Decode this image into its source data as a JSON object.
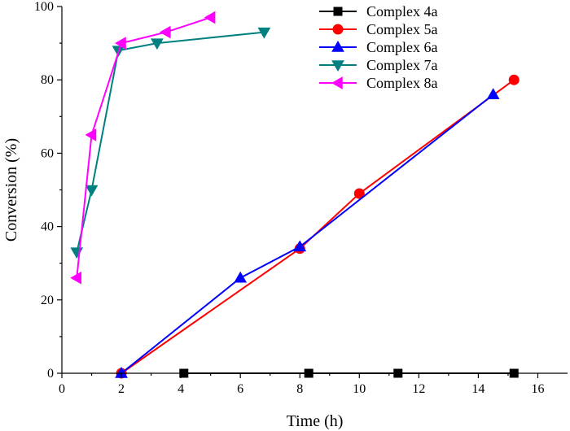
{
  "chart_data": {
    "type": "line",
    "title": "",
    "xlabel": "Time (h)",
    "ylabel": "Conversion (%)",
    "xlim": [
      0,
      17
    ],
    "ylim": [
      0,
      100
    ],
    "xticks": [
      0,
      2,
      4,
      6,
      8,
      10,
      12,
      14,
      16
    ],
    "yticks": [
      0,
      20,
      40,
      60,
      80,
      100
    ],
    "grid": false,
    "legend_position": "top-right",
    "series": [
      {
        "name": "Complex 4a",
        "color": "#000000",
        "marker": "square",
        "x": [
          4.1,
          8.3,
          11.3,
          15.2
        ],
        "y": [
          0,
          0,
          0,
          0
        ]
      },
      {
        "name": "Complex 5a",
        "color": "#ff0000",
        "marker": "circle",
        "x": [
          2,
          8,
          10,
          15.2
        ],
        "y": [
          0,
          34,
          49,
          80
        ]
      },
      {
        "name": "Complex 6a",
        "color": "#0000ff",
        "marker": "triangle-up",
        "x": [
          2,
          6,
          8,
          14.5
        ],
        "y": [
          0,
          26,
          34.5,
          76
        ]
      },
      {
        "name": "Complex 7a",
        "color": "#008080",
        "marker": "triangle-down",
        "x": [
          0.5,
          1,
          1.9,
          3.2,
          6.8
        ],
        "y": [
          33,
          50,
          88,
          90,
          93
        ]
      },
      {
        "name": "Complex 8a",
        "color": "#ff00ff",
        "marker": "triangle-left",
        "x": [
          0.5,
          1,
          2,
          3.5,
          5
        ],
        "y": [
          26,
          65,
          90,
          93,
          97
        ]
      }
    ]
  }
}
